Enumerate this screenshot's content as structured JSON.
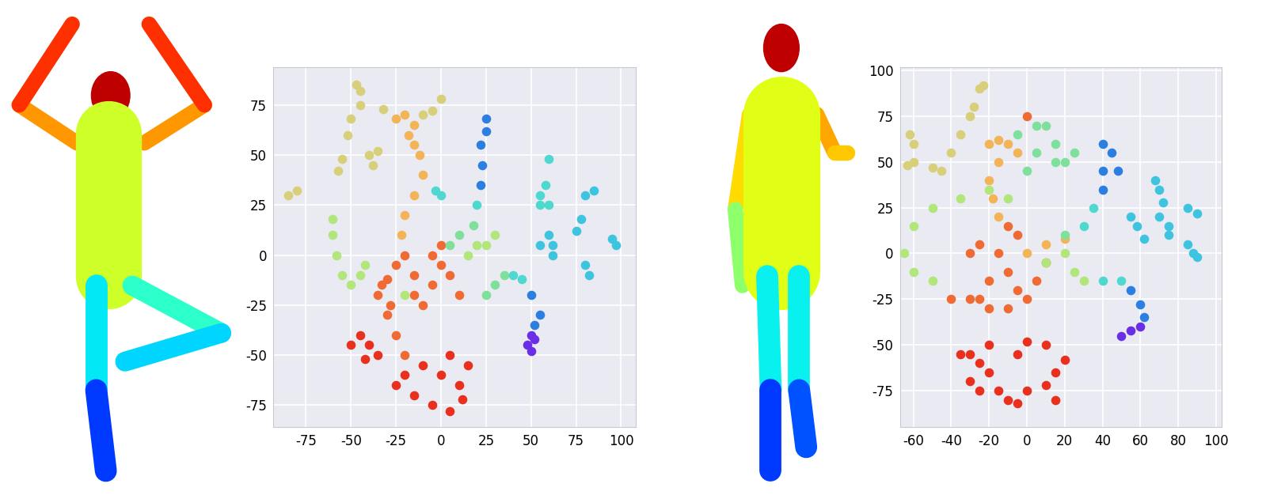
{
  "chart_data": [
    {
      "type": "scatter",
      "grid": true,
      "marker": "o",
      "xlim": [
        -93,
        108
      ],
      "ylim": [
        -86,
        94
      ],
      "xticks": [
        -75,
        -50,
        -25,
        0,
        25,
        50,
        75,
        100
      ],
      "yticks": [
        -75,
        -50,
        -25,
        0,
        25,
        50,
        75
      ],
      "series": [
        {
          "color": "#d8cf7a",
          "x": [
            -85,
            -80,
            -57,
            -55,
            -52,
            -50,
            -47,
            -45,
            -45,
            -38,
            -40,
            -35,
            -10,
            -5,
            0,
            -32
          ],
          "values": [
            30,
            32,
            42,
            48,
            60,
            68,
            85,
            82,
            75,
            45,
            50,
            52,
            70,
            72,
            78,
            73
          ]
        },
        {
          "color": "#f2b456",
          "x": [
            -20,
            -15,
            -25,
            -18,
            -15,
            -12,
            -10,
            -15,
            -20,
            -22
          ],
          "values": [
            70,
            65,
            68,
            60,
            55,
            50,
            40,
            30,
            20,
            10
          ]
        },
        {
          "color": "#f06a34",
          "x": [
            -25,
            -20,
            -15,
            -30,
            -35,
            -30,
            -25,
            -20,
            -28,
            -33,
            -5,
            0,
            5,
            -10,
            10,
            -15,
            -5,
            0
          ],
          "values": [
            -5,
            0,
            -10,
            -12,
            -20,
            -30,
            -40,
            -50,
            -25,
            -15,
            -15,
            -5,
            -10,
            -25,
            -20,
            -20,
            0,
            5
          ]
        },
        {
          "color": "#e8301c",
          "x": [
            -45,
            -40,
            -35,
            -50,
            -42,
            -20,
            -15,
            -5,
            5,
            10,
            5,
            0,
            -10,
            15,
            -25,
            12
          ],
          "values": [
            -40,
            -45,
            -50,
            -45,
            -52,
            -60,
            -70,
            -75,
            -78,
            -65,
            -50,
            -60,
            -55,
            -55,
            -65,
            -72
          ]
        },
        {
          "color": "#b0e67a",
          "x": [
            -60,
            -60,
            -58,
            -55,
            -50,
            -45,
            -42,
            -20,
            15,
            20,
            25,
            30
          ],
          "values": [
            18,
            10,
            0,
            -10,
            -15,
            -10,
            -5,
            -20,
            0,
            5,
            5,
            10
          ]
        },
        {
          "color": "#7ee09a",
          "x": [
            25,
            30,
            35,
            10,
            5,
            18
          ],
          "values": [
            -20,
            -15,
            -10,
            10,
            5,
            15
          ]
        },
        {
          "color": "#4fd8d0",
          "x": [
            40,
            45,
            20,
            0,
            -3,
            55,
            60,
            55,
            58,
            60
          ],
          "values": [
            -10,
            -12,
            25,
            30,
            32,
            30,
            25,
            25,
            35,
            48
          ]
        },
        {
          "color": "#3fc4e0",
          "x": [
            60,
            62,
            55,
            80,
            85,
            75,
            78,
            80,
            82,
            95,
            97,
            62
          ],
          "values": [
            10,
            5,
            5,
            30,
            32,
            12,
            18,
            -5,
            -10,
            8,
            5,
            0
          ]
        },
        {
          "color": "#2c7fe0",
          "x": [
            25,
            25,
            22,
            23,
            22,
            50,
            55,
            52
          ],
          "values": [
            68,
            62,
            55,
            45,
            35,
            -20,
            -30,
            -35
          ]
        },
        {
          "color": "#6a2ee6",
          "x": [
            50,
            48,
            50,
            52
          ],
          "values": [
            -40,
            -45,
            -48,
            -42
          ]
        }
      ]
    },
    {
      "type": "scatter",
      "grid": true,
      "marker": "o",
      "xlim": [
        -67,
        103
      ],
      "ylim": [
        -95,
        102
      ],
      "xticks": [
        -60,
        -40,
        -20,
        0,
        20,
        40,
        60,
        80,
        100
      ],
      "yticks": [
        -75,
        -50,
        -25,
        0,
        25,
        50,
        75,
        100
      ],
      "series": [
        {
          "color": "#d8cf7a",
          "x": [
            -62,
            -60,
            -63,
            -60,
            -40,
            -35,
            -30,
            -28,
            -25,
            -23,
            -45,
            -50
          ],
          "values": [
            65,
            60,
            48,
            50,
            55,
            65,
            75,
            80,
            90,
            92,
            45,
            47
          ]
        },
        {
          "color": "#f2b456",
          "x": [
            -20,
            -15,
            -10,
            -5,
            -15,
            -20,
            -18,
            -15,
            0,
            10,
            20
          ],
          "values": [
            60,
            62,
            60,
            55,
            50,
            40,
            30,
            20,
            0,
            5,
            8
          ]
        },
        {
          "color": "#f06a34",
          "x": [
            -10,
            -5,
            0,
            -30,
            -25,
            -15,
            -10,
            -5,
            0,
            5,
            10,
            -20,
            -10,
            -25,
            -40,
            -30,
            -20
          ],
          "values": [
            15,
            10,
            75,
            0,
            5,
            0,
            -10,
            -20,
            -25,
            -15,
            -5,
            -15,
            -30,
            -25,
            -25,
            -25,
            -30
          ]
        },
        {
          "color": "#e8301c",
          "x": [
            -35,
            -30,
            -25,
            -20,
            -15,
            -10,
            -5,
            0,
            10,
            15,
            20,
            10,
            0,
            -5,
            -20,
            -30,
            -25,
            15
          ],
          "values": [
            -55,
            -55,
            -60,
            -65,
            -75,
            -80,
            -82,
            -75,
            -72,
            -65,
            -58,
            -50,
            -48,
            -55,
            -50,
            -70,
            -75,
            -80
          ]
        },
        {
          "color": "#b0e67a",
          "x": [
            -10,
            -20,
            -35,
            -50,
            -60,
            -65,
            -60,
            -50,
            10,
            20,
            25,
            30
          ],
          "values": [
            30,
            35,
            30,
            25,
            15,
            0,
            -10,
            -15,
            -5,
            0,
            -10,
            -15
          ]
        },
        {
          "color": "#7ee09a",
          "x": [
            5,
            10,
            15,
            20,
            25,
            15,
            5,
            0,
            -5,
            20
          ],
          "values": [
            70,
            70,
            60,
            50,
            55,
            50,
            55,
            45,
            65,
            10
          ]
        },
        {
          "color": "#4fd8d0",
          "x": [
            30,
            35,
            40,
            50
          ],
          "values": [
            15,
            25,
            -15,
            -15
          ]
        },
        {
          "color": "#3fc4e0",
          "x": [
            68,
            70,
            72,
            70,
            75,
            55,
            58,
            62,
            75,
            85,
            90,
            85,
            88,
            90
          ],
          "values": [
            40,
            35,
            28,
            20,
            15,
            20,
            15,
            8,
            10,
            25,
            22,
            5,
            0,
            -2
          ]
        },
        {
          "color": "#2c7fe0",
          "x": [
            40,
            45,
            48,
            40,
            40,
            55,
            60,
            62
          ],
          "values": [
            60,
            55,
            45,
            45,
            35,
            -20,
            -28,
            -35
          ]
        },
        {
          "color": "#6a2ee6",
          "x": [
            60,
            55,
            50
          ],
          "values": [
            -40,
            -42,
            -45
          ]
        }
      ]
    }
  ]
}
